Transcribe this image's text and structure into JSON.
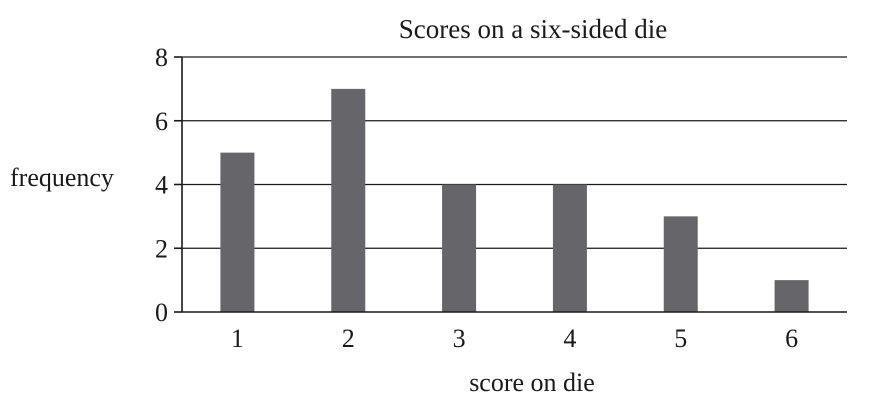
{
  "chart_data": {
    "type": "bar",
    "title": "Scores on a six-sided die",
    "xlabel": "score on die",
    "ylabel": "frequency",
    "categories": [
      "1",
      "2",
      "3",
      "4",
      "5",
      "6"
    ],
    "values": [
      5,
      7,
      4,
      4,
      3,
      1
    ],
    "ylim": [
      0,
      8
    ],
    "yticks": [
      0,
      2,
      4,
      6,
      8
    ],
    "ytick_labels": [
      "0",
      "2",
      "4",
      "6",
      "8"
    ],
    "grid": true,
    "bar_color": "#66666a"
  }
}
